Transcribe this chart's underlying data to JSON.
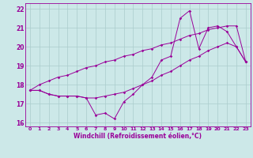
{
  "xlabel": "Windchill (Refroidissement éolien,°C)",
  "x_hours": [
    0,
    1,
    2,
    3,
    4,
    5,
    6,
    7,
    8,
    9,
    10,
    11,
    12,
    13,
    14,
    15,
    16,
    17,
    18,
    19,
    20,
    21,
    22,
    23
  ],
  "y_values": [
    17.7,
    17.7,
    17.5,
    17.4,
    17.4,
    17.4,
    17.3,
    16.4,
    16.5,
    16.2,
    17.1,
    17.5,
    18.0,
    18.4,
    19.3,
    19.5,
    21.5,
    21.9,
    19.9,
    21.0,
    21.1,
    20.8,
    20.0,
    19.2
  ],
  "y_line1": [
    17.7,
    18.0,
    18.2,
    18.4,
    18.5,
    18.7,
    18.9,
    19.0,
    19.2,
    19.3,
    19.5,
    19.6,
    19.8,
    19.9,
    20.1,
    20.2,
    20.4,
    20.6,
    20.7,
    20.9,
    21.0,
    21.1,
    21.1,
    19.2
  ],
  "y_line2": [
    17.7,
    17.7,
    17.5,
    17.4,
    17.4,
    17.4,
    17.3,
    17.3,
    17.4,
    17.5,
    17.6,
    17.8,
    18.0,
    18.2,
    18.5,
    18.7,
    19.0,
    19.3,
    19.5,
    19.8,
    20.0,
    20.2,
    20.0,
    19.2
  ],
  "line_color": "#990099",
  "bg_color": "#cce8e8",
  "grid_color": "#aacccc",
  "ylim": [
    15.8,
    22.3
  ],
  "yticks": [
    16,
    17,
    18,
    19,
    20,
    21,
    22
  ],
  "xlim": [
    -0.5,
    23.5
  ],
  "xticks": [
    0,
    1,
    2,
    3,
    4,
    5,
    6,
    7,
    8,
    9,
    10,
    11,
    12,
    13,
    14,
    15,
    16,
    17,
    18,
    19,
    20,
    21,
    22,
    23
  ]
}
